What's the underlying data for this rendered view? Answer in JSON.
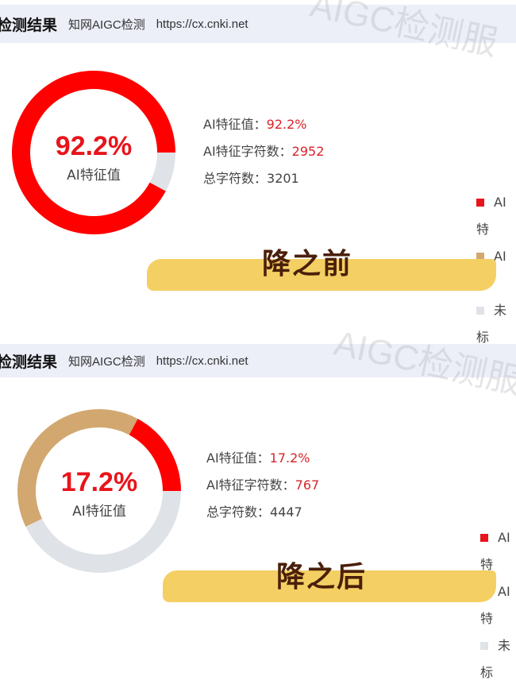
{
  "colors": {
    "ai": "#ff0000",
    "suspect": "#d2a870",
    "unmarked": "#dfe3e8",
    "header_bg": "#eceef8"
  },
  "panels": [
    {
      "header": {
        "title": "检测结果",
        "product": "知网AIGC检测",
        "url": "https://cx.cnki.net"
      },
      "watermark": "AIGC检测服",
      "center_value": "92.2%",
      "center_label": "AI特征值",
      "stats": [
        {
          "label": "AI特征值：",
          "value": "92.2%"
        },
        {
          "label": "AI特征字符数：",
          "value": "2952"
        },
        {
          "label": "总字符数：",
          "value": "3201"
        }
      ],
      "legend": [
        "AI特",
        "AI特",
        "未标"
      ],
      "stamp": "降之前",
      "chart_data": {
        "type": "pie",
        "slices": [
          {
            "key": "ai",
            "value": 92.2
          },
          {
            "key": "suspect",
            "value": 0
          },
          {
            "key": "unmarked",
            "value": 7.8
          }
        ]
      }
    },
    {
      "header": {
        "title": "检测结果",
        "product": "知网AIGC检测",
        "url": "https://cx.cnki.net"
      },
      "watermark": "AIGC检测服",
      "center_value": "17.2%",
      "center_label": "AI特征值",
      "stats": [
        {
          "label": "AI特征值：",
          "value": "17.2%"
        },
        {
          "label": "AI特征字符数：",
          "value": "767"
        },
        {
          "label": "总字符数：",
          "value": "4447"
        }
      ],
      "legend": [
        "AI特",
        "AI特",
        "未标"
      ],
      "stamp": "降之后",
      "chart_data": {
        "type": "pie",
        "slices": [
          {
            "key": "ai",
            "value": 17.2
          },
          {
            "key": "suspect",
            "value": 40
          },
          {
            "key": "unmarked",
            "value": 42.8
          }
        ]
      }
    }
  ]
}
